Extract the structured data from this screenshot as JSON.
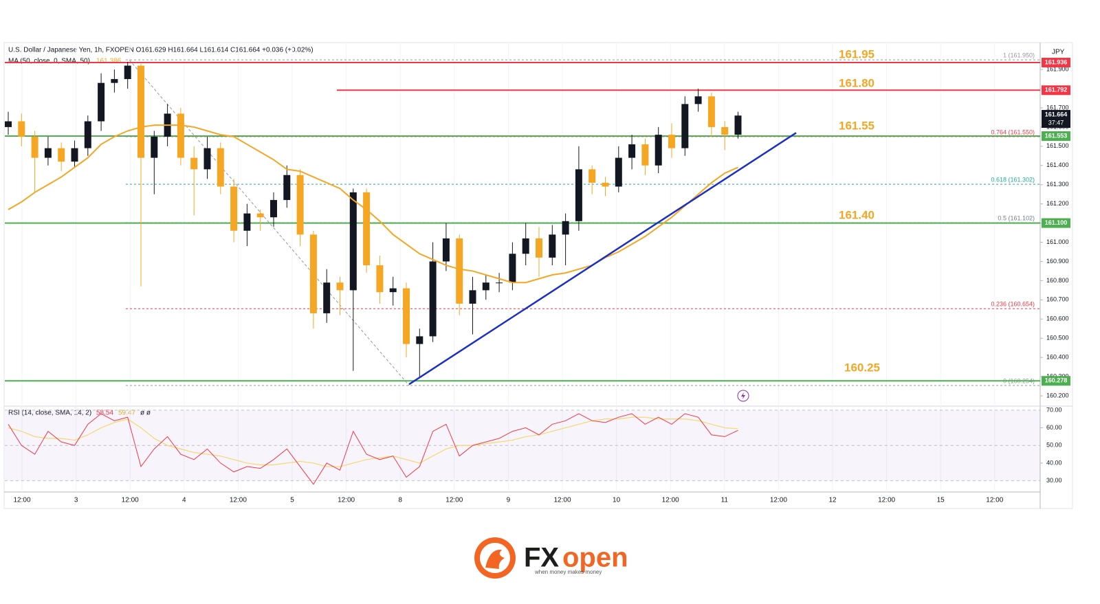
{
  "chart_data": {
    "type": "candlestick",
    "header": "U.S. Dollar / Japanese Yen, 1h, FXOPEN  O161.629 H161.664 L161.614 C161.664 +0.036 (+0.02%)",
    "currency": "JPY",
    "ylim": [
      160.15,
      162.04
    ],
    "yticks": [
      {
        "value": 160.2,
        "label": "160.200"
      },
      {
        "value": 160.3,
        "label": "160.300"
      },
      {
        "value": 160.4,
        "label": "160.400"
      },
      {
        "value": 160.5,
        "label": "160.500"
      },
      {
        "value": 160.6,
        "label": "160.600"
      },
      {
        "value": 160.7,
        "label": "160.700"
      },
      {
        "value": 160.8,
        "label": "160.800"
      },
      {
        "value": 160.9,
        "label": "160.900"
      },
      {
        "value": 161,
        "label": "161.000"
      },
      {
        "value": 161.1,
        "label": "161.100"
      },
      {
        "value": 161.2,
        "label": "161.200"
      },
      {
        "value": 161.3,
        "label": "161.300"
      },
      {
        "value": 161.4,
        "label": "161.400"
      },
      {
        "value": 161.5,
        "label": "161.500"
      },
      {
        "value": 161.6,
        "label": "161.600"
      },
      {
        "value": 161.7,
        "label": "161.700"
      },
      {
        "value": 161.8,
        "label": "161.800"
      },
      {
        "value": 161.9,
        "label": "161.900"
      }
    ],
    "xticks": [
      "12:00",
      "3",
      "12:00",
      "4",
      "12:00",
      "5",
      "12:00",
      "8",
      "12:00",
      "9",
      "12:00",
      "10",
      "12:00",
      "11",
      "12:00",
      "12",
      "12:00",
      "15",
      "12:00"
    ],
    "up_color": "#131722",
    "down_color": "#f5a623",
    "open": [
      161.6,
      161.63,
      161.55,
      161.44,
      161.49,
      161.42,
      161.49,
      161.63,
      161.83,
      161.85,
      161.92,
      161.44,
      161.55,
      161.67,
      161.44,
      161.38,
      161.49,
      161.29,
      161.06,
      161.15,
      161.13,
      161.22,
      161.35,
      161.04,
      160.63,
      160.79,
      160.75,
      161.26,
      160.88,
      160.74,
      160.76,
      160.47,
      160.51,
      160.9,
      161.02,
      160.68,
      160.75,
      160.79,
      160.79,
      160.94,
      161.02,
      160.92,
      161.04,
      161.11,
      161.38,
      161.31,
      161.29,
      161.44,
      161.51,
      161.4,
      161.56,
      161.49,
      161.72,
      161.76,
      161.6,
      161.56
    ],
    "high": [
      161.68,
      161.67,
      161.58,
      161.55,
      161.52,
      161.53,
      161.66,
      161.88,
      161.9,
      161.94,
      161.93,
      161.58,
      161.72,
      161.7,
      161.5,
      161.55,
      161.52,
      161.33,
      161.2,
      161.17,
      161.26,
      161.4,
      161.38,
      161.06,
      160.86,
      160.82,
      161.28,
      161.28,
      160.93,
      160.82,
      160.79,
      160.55,
      161.0,
      161.1,
      161.04,
      160.82,
      160.83,
      160.84,
      161.0,
      161.1,
      161.08,
      161.09,
      161.15,
      161.5,
      161.4,
      161.34,
      161.5,
      161.56,
      161.54,
      161.6,
      161.62,
      161.76,
      161.8,
      161.78,
      161.63,
      161.68
    ],
    "low": [
      161.56,
      161.5,
      161.26,
      161.4,
      161.37,
      161.39,
      161.45,
      161.58,
      161.78,
      161.8,
      160.77,
      161.25,
      161.5,
      161.4,
      161.14,
      161.33,
      161.25,
      161.0,
      160.98,
      161.06,
      161.08,
      161.18,
      160.98,
      160.55,
      160.58,
      160.62,
      160.33,
      160.84,
      160.68,
      160.67,
      160.4,
      160.3,
      160.48,
      160.85,
      160.62,
      160.52,
      160.7,
      160.74,
      160.75,
      160.88,
      160.82,
      160.88,
      160.88,
      161.06,
      161.25,
      161.24,
      161.26,
      161.38,
      161.35,
      161.36,
      161.44,
      161.45,
      161.68,
      161.55,
      161.48,
      161.54
    ],
    "close": [
      161.63,
      161.55,
      161.44,
      161.49,
      161.42,
      161.49,
      161.63,
      161.83,
      161.85,
      161.92,
      161.44,
      161.55,
      161.67,
      161.44,
      161.38,
      161.49,
      161.29,
      161.06,
      161.15,
      161.13,
      161.22,
      161.35,
      161.04,
      160.63,
      160.79,
      160.75,
      161.26,
      160.88,
      160.74,
      160.76,
      160.47,
      160.51,
      160.9,
      161.02,
      160.68,
      160.75,
      160.79,
      160.79,
      160.94,
      161.02,
      160.92,
      161.04,
      161.11,
      161.38,
      161.31,
      161.29,
      161.44,
      161.51,
      161.4,
      161.56,
      161.49,
      161.72,
      161.76,
      161.6,
      161.56,
      161.66
    ],
    "ma": {
      "name": "MA (50, close, 0, SMA, 50)",
      "legend_value": "161.386",
      "color": "#f5a623",
      "values": [
        161.17,
        161.21,
        161.26,
        161.3,
        161.34,
        161.39,
        161.44,
        161.51,
        161.55,
        161.58,
        161.6,
        161.61,
        161.61,
        161.61,
        161.6,
        161.58,
        161.56,
        161.55,
        161.51,
        161.47,
        161.43,
        161.38,
        161.37,
        161.34,
        161.31,
        161.28,
        161.22,
        161.17,
        161.11,
        161.04,
        160.99,
        160.94,
        160.91,
        160.88,
        160.86,
        160.85,
        160.83,
        160.81,
        160.79,
        160.79,
        160.81,
        160.83,
        160.84,
        160.86,
        160.88,
        160.92,
        160.95,
        160.99,
        161.03,
        161.08,
        161.13,
        161.19,
        161.25,
        161.31,
        161.36,
        161.39
      ]
    },
    "levels": [
      {
        "value": 161.936,
        "color": "#f23645"
      },
      {
        "value": 161.792,
        "color": "#f23645"
      },
      {
        "value": 161.553,
        "color": "#4caf50"
      },
      {
        "value": 161.1,
        "label": "161.100",
        "color": "#4caf50"
      },
      {
        "value": 160.278,
        "color": "#4caf50"
      }
    ],
    "last_price": {
      "value": 161.664,
      "countdown": "37:47",
      "color": "#131722"
    },
    "annotations": [
      "161.95",
      "161.80",
      "161.55",
      "161.40",
      "160.25"
    ],
    "annotation_color": "#f5a623",
    "fib": [
      {
        "label": "1 (161.950)",
        "value": 161.95,
        "color": "#9598a1"
      },
      {
        "label": "0.764 (161.550)",
        "value": 161.55,
        "color": "#f23645"
      },
      {
        "label": "0.618 (161.302)",
        "value": 161.302,
        "color": "#22ab94"
      },
      {
        "label": "0.5 (161.102)",
        "value": 161.102,
        "color": "#787b86"
      },
      {
        "label": "0.236 (160.654)",
        "value": 160.654,
        "color": "#f23645"
      },
      {
        "label": "0 (160.254)",
        "value": 160.254,
        "color": "#9598a1"
      }
    ],
    "trendline": {
      "start": 160.26,
      "end": 161.57,
      "color": "#1b2fc4"
    },
    "rsi": {
      "name": "RSI (14, close, SMA, 14, 2)",
      "legend": [
        "58.54",
        "59.47",
        "ø ø"
      ],
      "color": "#f23645",
      "values": [
        62,
        50,
        45,
        58,
        52,
        50,
        62,
        68,
        64,
        66,
        38,
        48,
        55,
        45,
        42,
        48,
        40,
        35,
        38,
        37,
        42,
        48,
        38,
        28,
        40,
        36,
        58,
        45,
        42,
        44,
        32,
        38,
        58,
        62,
        44,
        50,
        52,
        54,
        58,
        60,
        56,
        62,
        64,
        68,
        64,
        63,
        66,
        68,
        62,
        66,
        62,
        68,
        66,
        56,
        55,
        58.54
      ],
      "ma_color": "#f5d76e",
      "ma": [
        60,
        58,
        55,
        54,
        54,
        53,
        56,
        60,
        63,
        65,
        60,
        54,
        50,
        48,
        46,
        45,
        44,
        42,
        40,
        39,
        39,
        40,
        41,
        40,
        38,
        38,
        40,
        42,
        43,
        44,
        42,
        40,
        44,
        48,
        50,
        50,
        51,
        52,
        53,
        55,
        56,
        58,
        60,
        62,
        64,
        65,
        65,
        66,
        66,
        65,
        65,
        65,
        64,
        62,
        60,
        59.47
      ],
      "ylim": [
        24,
        72.3
      ],
      "yticks": [
        {
          "value": 30,
          "label": "30.00"
        },
        {
          "value": 40,
          "label": "40.00"
        },
        {
          "value": 50,
          "label": "50.00"
        },
        {
          "value": 60,
          "label": "60.00"
        },
        {
          "value": 70,
          "label": "70.00"
        }
      ]
    }
  },
  "logo": {
    "brand_dark": "FX",
    "brand_light": "open",
    "tagline": "when money makes money"
  }
}
